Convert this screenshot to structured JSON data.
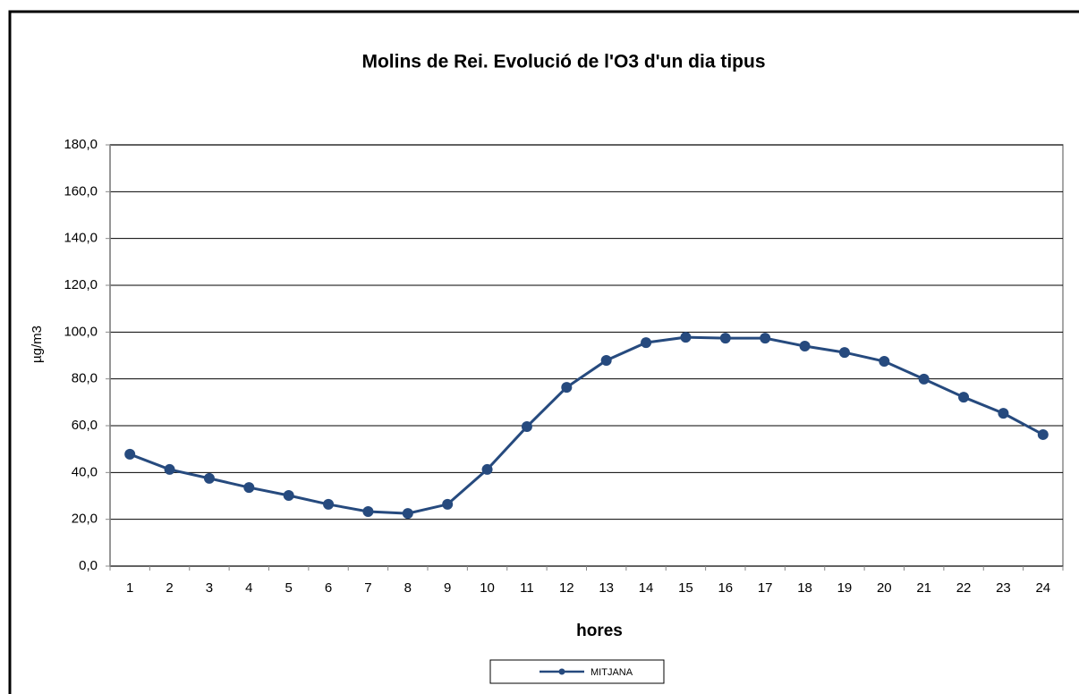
{
  "chart_data": {
    "type": "line",
    "title": "Molins de Rei. Evolució de l'O3 d'un dia tipus",
    "x_label": "hores",
    "y_label": "µg/m3",
    "categories": [
      "1",
      "2",
      "3",
      "4",
      "5",
      "6",
      "7",
      "8",
      "9",
      "10",
      "11",
      "12",
      "13",
      "14",
      "15",
      "16",
      "17",
      "18",
      "19",
      "20",
      "21",
      "22",
      "23",
      "24"
    ],
    "series": [
      {
        "name": "MITJANA",
        "color": "#264a7e",
        "values": [
          47.8,
          41.3,
          37.5,
          33.6,
          30.2,
          26.4,
          23.3,
          22.5,
          26.4,
          41.3,
          59.6,
          76.4,
          87.9,
          95.5,
          97.8,
          97.4,
          97.4,
          94.0,
          91.3,
          87.5,
          79.9,
          72.2,
          65.3,
          56.2
        ]
      }
    ],
    "ylim": [
      0,
      180
    ],
    "yticks": [
      {
        "value": 0,
        "label": "0,0"
      },
      {
        "value": 20,
        "label": "20,0"
      },
      {
        "value": 40,
        "label": "40,0"
      },
      {
        "value": 60,
        "label": "60,0"
      },
      {
        "value": 80,
        "label": "80,0"
      },
      {
        "value": 100,
        "label": "100,0"
      },
      {
        "value": 120,
        "label": "120,0"
      },
      {
        "value": 140,
        "label": "140,0"
      },
      {
        "value": 160,
        "label": "160,0"
      },
      {
        "value": 180,
        "label": "180,0"
      }
    ],
    "grid": true,
    "legend": "bottom"
  }
}
